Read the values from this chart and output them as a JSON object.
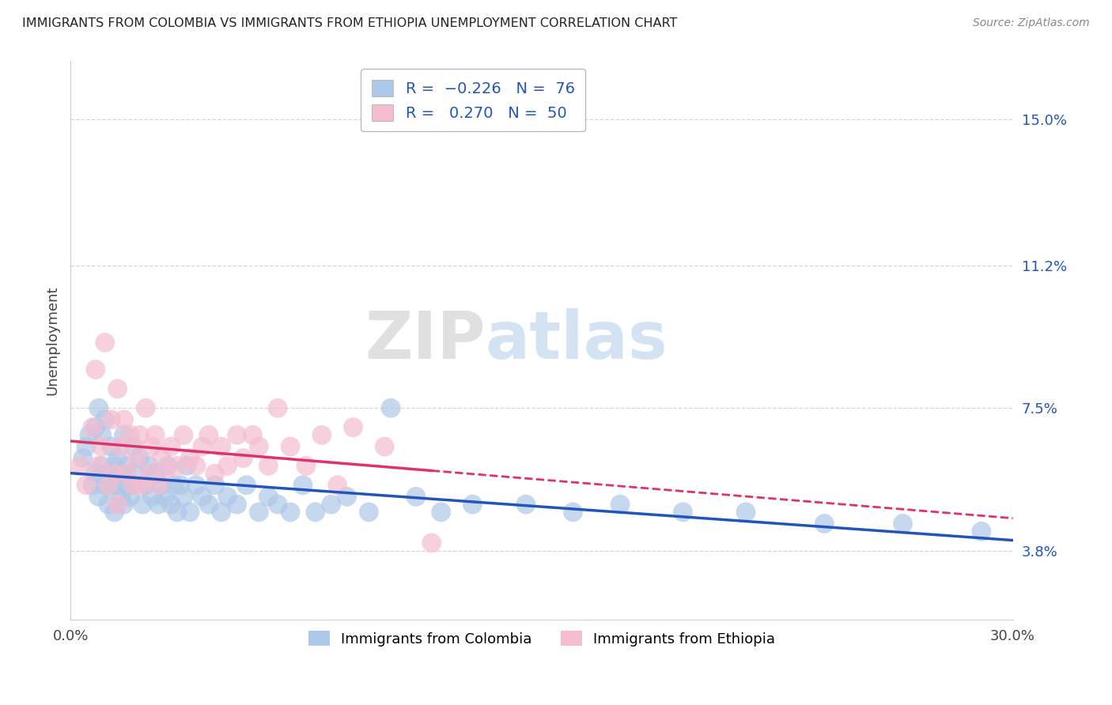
{
  "title": "IMMIGRANTS FROM COLOMBIA VS IMMIGRANTS FROM ETHIOPIA UNEMPLOYMENT CORRELATION CHART",
  "source_text": "Source: ZipAtlas.com",
  "ylabel": "Unemployment",
  "xlim": [
    0.0,
    0.3
  ],
  "ylim": [
    0.02,
    0.165
  ],
  "xtick_vals": [
    0.0,
    0.3
  ],
  "xtick_labels": [
    "0.0%",
    "30.0%"
  ],
  "ytick_vals": [
    0.038,
    0.075,
    0.112,
    0.15
  ],
  "ytick_labels": [
    "3.8%",
    "7.5%",
    "11.2%",
    "15.0%"
  ],
  "watermark_zip": "ZIP",
  "watermark_atlas": "atlas",
  "colombia_color": "#adc8e8",
  "ethiopia_color": "#f5bcd0",
  "colombia_line_color": "#2255bb",
  "ethiopia_line_color": "#dd3366",
  "colombia_R": -0.226,
  "colombia_N": 76,
  "ethiopia_R": 0.27,
  "ethiopia_N": 50,
  "colombia_label": "Immigrants from Colombia",
  "ethiopia_label": "Immigrants from Ethiopia",
  "title_color": "#222222",
  "axis_color": "#2255bb",
  "grid_color": "#cccccc",
  "colombia_points_x": [
    0.004,
    0.005,
    0.006,
    0.007,
    0.008,
    0.008,
    0.009,
    0.009,
    0.01,
    0.01,
    0.011,
    0.011,
    0.012,
    0.012,
    0.013,
    0.013,
    0.014,
    0.014,
    0.015,
    0.015,
    0.016,
    0.016,
    0.017,
    0.017,
    0.018,
    0.018,
    0.019,
    0.02,
    0.02,
    0.021,
    0.022,
    0.023,
    0.024,
    0.025,
    0.026,
    0.027,
    0.028,
    0.029,
    0.03,
    0.031,
    0.032,
    0.033,
    0.034,
    0.035,
    0.036,
    0.037,
    0.038,
    0.04,
    0.042,
    0.044,
    0.046,
    0.048,
    0.05,
    0.053,
    0.056,
    0.06,
    0.063,
    0.066,
    0.07,
    0.074,
    0.078,
    0.083,
    0.088,
    0.095,
    0.102,
    0.11,
    0.118,
    0.128,
    0.145,
    0.16,
    0.175,
    0.195,
    0.215,
    0.24,
    0.265,
    0.29
  ],
  "colombia_points_y": [
    0.062,
    0.065,
    0.068,
    0.055,
    0.07,
    0.058,
    0.075,
    0.052,
    0.06,
    0.068,
    0.055,
    0.072,
    0.058,
    0.05,
    0.065,
    0.055,
    0.06,
    0.048,
    0.062,
    0.055,
    0.058,
    0.052,
    0.068,
    0.05,
    0.055,
    0.06,
    0.052,
    0.065,
    0.055,
    0.058,
    0.062,
    0.05,
    0.055,
    0.06,
    0.052,
    0.058,
    0.05,
    0.055,
    0.052,
    0.06,
    0.05,
    0.055,
    0.048,
    0.055,
    0.052,
    0.06,
    0.048,
    0.055,
    0.052,
    0.05,
    0.055,
    0.048,
    0.052,
    0.05,
    0.055,
    0.048,
    0.052,
    0.05,
    0.048,
    0.055,
    0.048,
    0.05,
    0.052,
    0.048,
    0.075,
    0.052,
    0.048,
    0.05,
    0.05,
    0.048,
    0.05,
    0.048,
    0.048,
    0.045,
    0.045,
    0.043
  ],
  "ethiopia_points_x": [
    0.003,
    0.005,
    0.007,
    0.008,
    0.009,
    0.01,
    0.011,
    0.012,
    0.013,
    0.014,
    0.015,
    0.015,
    0.016,
    0.017,
    0.018,
    0.019,
    0.02,
    0.021,
    0.022,
    0.023,
    0.024,
    0.025,
    0.026,
    0.027,
    0.028,
    0.029,
    0.03,
    0.032,
    0.034,
    0.036,
    0.038,
    0.04,
    0.042,
    0.044,
    0.046,
    0.048,
    0.05,
    0.053,
    0.055,
    0.058,
    0.06,
    0.063,
    0.066,
    0.07,
    0.075,
    0.08,
    0.085,
    0.09,
    0.1,
    0.115
  ],
  "ethiopia_points_y": [
    0.06,
    0.055,
    0.07,
    0.085,
    0.06,
    0.065,
    0.092,
    0.055,
    0.072,
    0.058,
    0.08,
    0.05,
    0.065,
    0.072,
    0.058,
    0.068,
    0.055,
    0.062,
    0.068,
    0.055,
    0.075,
    0.058,
    0.065,
    0.068,
    0.055,
    0.062,
    0.058,
    0.065,
    0.06,
    0.068,
    0.062,
    0.06,
    0.065,
    0.068,
    0.058,
    0.065,
    0.06,
    0.068,
    0.062,
    0.068,
    0.065,
    0.06,
    0.075,
    0.065,
    0.06,
    0.068,
    0.055,
    0.07,
    0.065,
    0.04
  ]
}
